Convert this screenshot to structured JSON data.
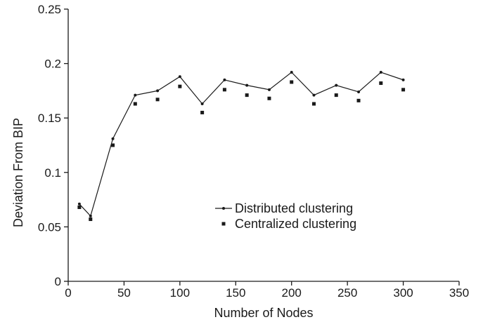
{
  "chart_data": {
    "type": "line",
    "title": "",
    "xlabel": "Number of Nodes",
    "ylabel": "Deviation From BIP",
    "xlim": [
      0,
      350
    ],
    "ylim": [
      0,
      0.25
    ],
    "x_ticks": [
      "0",
      "50",
      "100",
      "150",
      "200",
      "250",
      "300",
      "350"
    ],
    "y_ticks": [
      "0",
      "0.05",
      "0.1",
      "0.15",
      "0.2",
      "0.25"
    ],
    "grid": false,
    "legend_position": "center-right",
    "x": [
      10,
      20,
      40,
      60,
      80,
      100,
      120,
      140,
      160,
      180,
      200,
      220,
      240,
      260,
      280,
      300
    ],
    "series": [
      {
        "name": "Distributed clustering",
        "style": "line-with-dots",
        "color": "#1a1a1a",
        "values": [
          0.071,
          0.06,
          0.131,
          0.171,
          0.175,
          0.188,
          0.163,
          0.185,
          0.18,
          0.176,
          0.192,
          0.171,
          0.18,
          0.174,
          0.192,
          0.185
        ]
      },
      {
        "name": "Centralized clustering",
        "style": "square-markers",
        "color": "#1a1a1a",
        "values": [
          0.068,
          0.057,
          0.125,
          0.163,
          0.167,
          0.179,
          0.155,
          0.176,
          0.171,
          0.168,
          0.183,
          0.163,
          0.171,
          0.166,
          0.182,
          0.176
        ]
      }
    ]
  }
}
